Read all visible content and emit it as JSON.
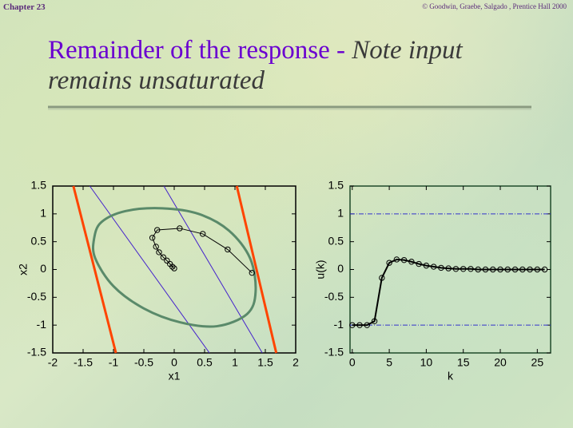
{
  "slide": {
    "chapter": "Chapter 23",
    "copyright": "© Goodwin, Graebe, Salgado , Prentice Hall 2000",
    "title": "Remainder of the response - ",
    "title_note": "Note input remains unsaturated"
  },
  "chart_data": [
    {
      "type": "line",
      "xlabel": "x1",
      "ylabel": "x2",
      "xlim": [
        -2,
        2
      ],
      "ylim": [
        -1.5,
        1.5
      ],
      "xticks": [
        -2,
        -1.5,
        -1,
        -0.5,
        0,
        0.5,
        1,
        1.5,
        2
      ],
      "yticks": [
        -1.5,
        -1,
        -0.5,
        0,
        0.5,
        1,
        1.5
      ],
      "frame_color": "#000000",
      "series": [
        {
          "color": "#ff4400",
          "width": 3,
          "x": [
            -1.66,
            -0.96
          ],
          "values": [
            1.5,
            -1.5
          ]
        },
        {
          "color": "#ff4400",
          "width": 3,
          "x": [
            1.03,
            1.68
          ],
          "values": [
            1.5,
            -1.5
          ]
        },
        {
          "color": "#4422cc",
          "width": 1,
          "x": [
            -1.39,
            0.58
          ],
          "values": [
            1.5,
            -1.5
          ]
        },
        {
          "color": "#4422cc",
          "width": 1,
          "x": [
            -0.17,
            1.45
          ],
          "values": [
            1.5,
            -1.5
          ]
        },
        {
          "color": "#5a8a6a",
          "width": 3,
          "closed": true,
          "x": [
            -1.32,
            -1.2,
            -0.8,
            -0.2,
            0.4,
            0.9,
            1.25,
            1.34,
            1.2,
            0.7,
            0.1,
            -0.5,
            -1.0,
            -1.3
          ],
          "values": [
            0.55,
            0.85,
            1.05,
            1.1,
            1.0,
            0.7,
            0.2,
            -0.4,
            -0.8,
            -1.02,
            -0.95,
            -0.7,
            -0.3,
            0.2
          ]
        },
        {
          "color": "#000000",
          "width": 1,
          "marker": true,
          "x": [
            1.28,
            0.88,
            0.47,
            0.09,
            -0.28,
            -0.36,
            -0.3,
            -0.25,
            -0.18,
            -0.12,
            -0.07,
            -0.03,
            0
          ],
          "values": [
            -0.06,
            0.36,
            0.64,
            0.74,
            0.71,
            0.57,
            0.41,
            0.31,
            0.22,
            0.16,
            0.1,
            0.05,
            0.02
          ]
        }
      ]
    },
    {
      "type": "line",
      "xlabel": "k",
      "ylabel": "u(k)",
      "xlim": [
        -0.3,
        26.8
      ],
      "ylim": [
        -1.5,
        1.5
      ],
      "xticks": [
        0,
        5,
        10,
        15,
        20,
        25
      ],
      "yticks": [
        -1.5,
        -1,
        -0.5,
        0,
        0.5,
        1,
        1.5
      ],
      "frame_color": "#1f4a2a",
      "hlines": [
        1,
        -1
      ],
      "hline_color": "#3333cc",
      "x": [
        0,
        1,
        2,
        3,
        4,
        5,
        6,
        7,
        8,
        9,
        10,
        11,
        12,
        13,
        14,
        15,
        16,
        17,
        18,
        19,
        20,
        21,
        22,
        23,
        24,
        25,
        26
      ],
      "series": [
        {
          "color": "#000000",
          "width": 2,
          "marker": true,
          "values": [
            -1,
            -1,
            -1,
            -0.93,
            -0.15,
            0.12,
            0.18,
            0.17,
            0.14,
            0.1,
            0.07,
            0.05,
            0.03,
            0.02,
            0.01,
            0.01,
            0.01,
            0,
            0,
            0,
            0,
            0,
            0,
            0,
            0,
            0,
            0
          ]
        }
      ]
    }
  ]
}
